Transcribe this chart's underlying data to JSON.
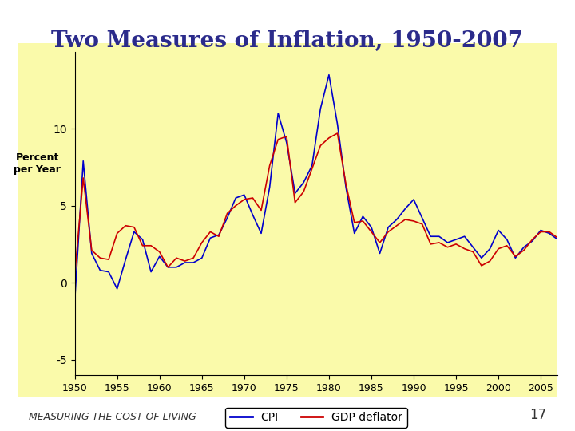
{
  "title": "Two Measures of Inflation, 1950-2007",
  "ylabel": "Percent\nper Year",
  "xlabel": "",
  "background_color": "#FAFAAA",
  "outer_bg": "#FFFFFF",
  "title_color": "#2B2B8B",
  "title_fontsize": 20,
  "legend_labels": [
    "CPI",
    "GDP deflator"
  ],
  "cpi_color": "#0000CC",
  "gdp_color": "#CC0000",
  "ylim": [
    -6,
    15
  ],
  "yticks": [
    -5,
    0,
    5,
    10
  ],
  "footer_text": "MEASURING THE COST OF LIVING",
  "page_number": "17",
  "years": [
    1950,
    1951,
    1952,
    1953,
    1954,
    1955,
    1956,
    1957,
    1958,
    1959,
    1960,
    1961,
    1962,
    1963,
    1964,
    1965,
    1966,
    1967,
    1968,
    1969,
    1970,
    1971,
    1972,
    1973,
    1974,
    1975,
    1976,
    1977,
    1978,
    1979,
    1980,
    1981,
    1982,
    1983,
    1984,
    1985,
    1986,
    1987,
    1988,
    1989,
    1990,
    1991,
    1992,
    1993,
    1994,
    1995,
    1996,
    1997,
    1998,
    1999,
    2000,
    2001,
    2002,
    2003,
    2004,
    2005,
    2006,
    2007
  ],
  "cpi": [
    -1.2,
    7.9,
    1.9,
    0.8,
    0.7,
    -0.4,
    1.5,
    3.3,
    2.8,
    0.7,
    1.7,
    1.0,
    1.0,
    1.3,
    1.3,
    1.6,
    2.9,
    3.1,
    4.2,
    5.5,
    5.7,
    4.4,
    3.2,
    6.2,
    11.0,
    9.1,
    5.8,
    6.5,
    7.6,
    11.3,
    13.5,
    10.3,
    6.2,
    3.2,
    4.3,
    3.6,
    1.9,
    3.6,
    4.1,
    4.8,
    5.4,
    4.2,
    3.0,
    3.0,
    2.6,
    2.8,
    3.0,
    2.3,
    1.6,
    2.2,
    3.4,
    2.8,
    1.6,
    2.3,
    2.7,
    3.4,
    3.2,
    2.8
  ],
  "gdp": [
    0.5,
    6.8,
    2.1,
    1.6,
    1.5,
    3.2,
    3.7,
    3.6,
    2.4,
    2.4,
    2.0,
    1.0,
    1.6,
    1.4,
    1.6,
    2.6,
    3.3,
    3.0,
    4.5,
    5.0,
    5.4,
    5.5,
    4.7,
    7.6,
    9.3,
    9.5,
    5.2,
    5.9,
    7.4,
    8.9,
    9.4,
    9.7,
    6.4,
    3.9,
    4.0,
    3.3,
    2.6,
    3.3,
    3.7,
    4.1,
    4.0,
    3.8,
    2.5,
    2.6,
    2.3,
    2.5,
    2.2,
    2.0,
    1.1,
    1.4,
    2.2,
    2.4,
    1.7,
    2.1,
    2.8,
    3.3,
    3.3,
    2.9
  ]
}
